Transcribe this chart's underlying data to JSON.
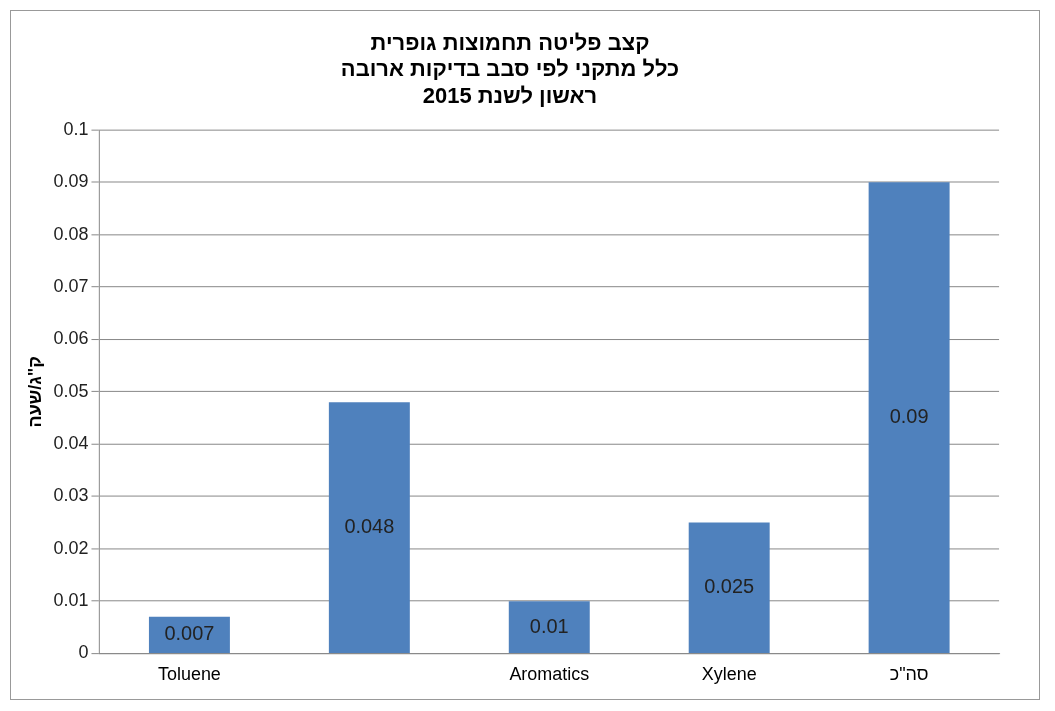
{
  "chart_data": {
    "type": "bar",
    "title": "קצב פליטה תחמוצות גופרית\nכלל מתקני לפי סבב בדיקות ארובה\nראשון לשנת 2015",
    "ylabel": "ק\"ג/שעה",
    "categories": [
      "Toluene",
      null,
      "Aromatics",
      "Xylene",
      "סה\"כ"
    ],
    "values": [
      0.007,
      0.048,
      0.01,
      0.025,
      0.09
    ],
    "color": "#4f81bd",
    "ylim": [
      0,
      0.1
    ],
    "yticks": [
      0,
      0.01,
      0.02,
      0.03,
      0.04,
      0.05,
      0.06,
      0.07,
      0.08,
      0.09,
      0.1
    ],
    "grid": "y",
    "data_labels": true,
    "legend": false
  }
}
